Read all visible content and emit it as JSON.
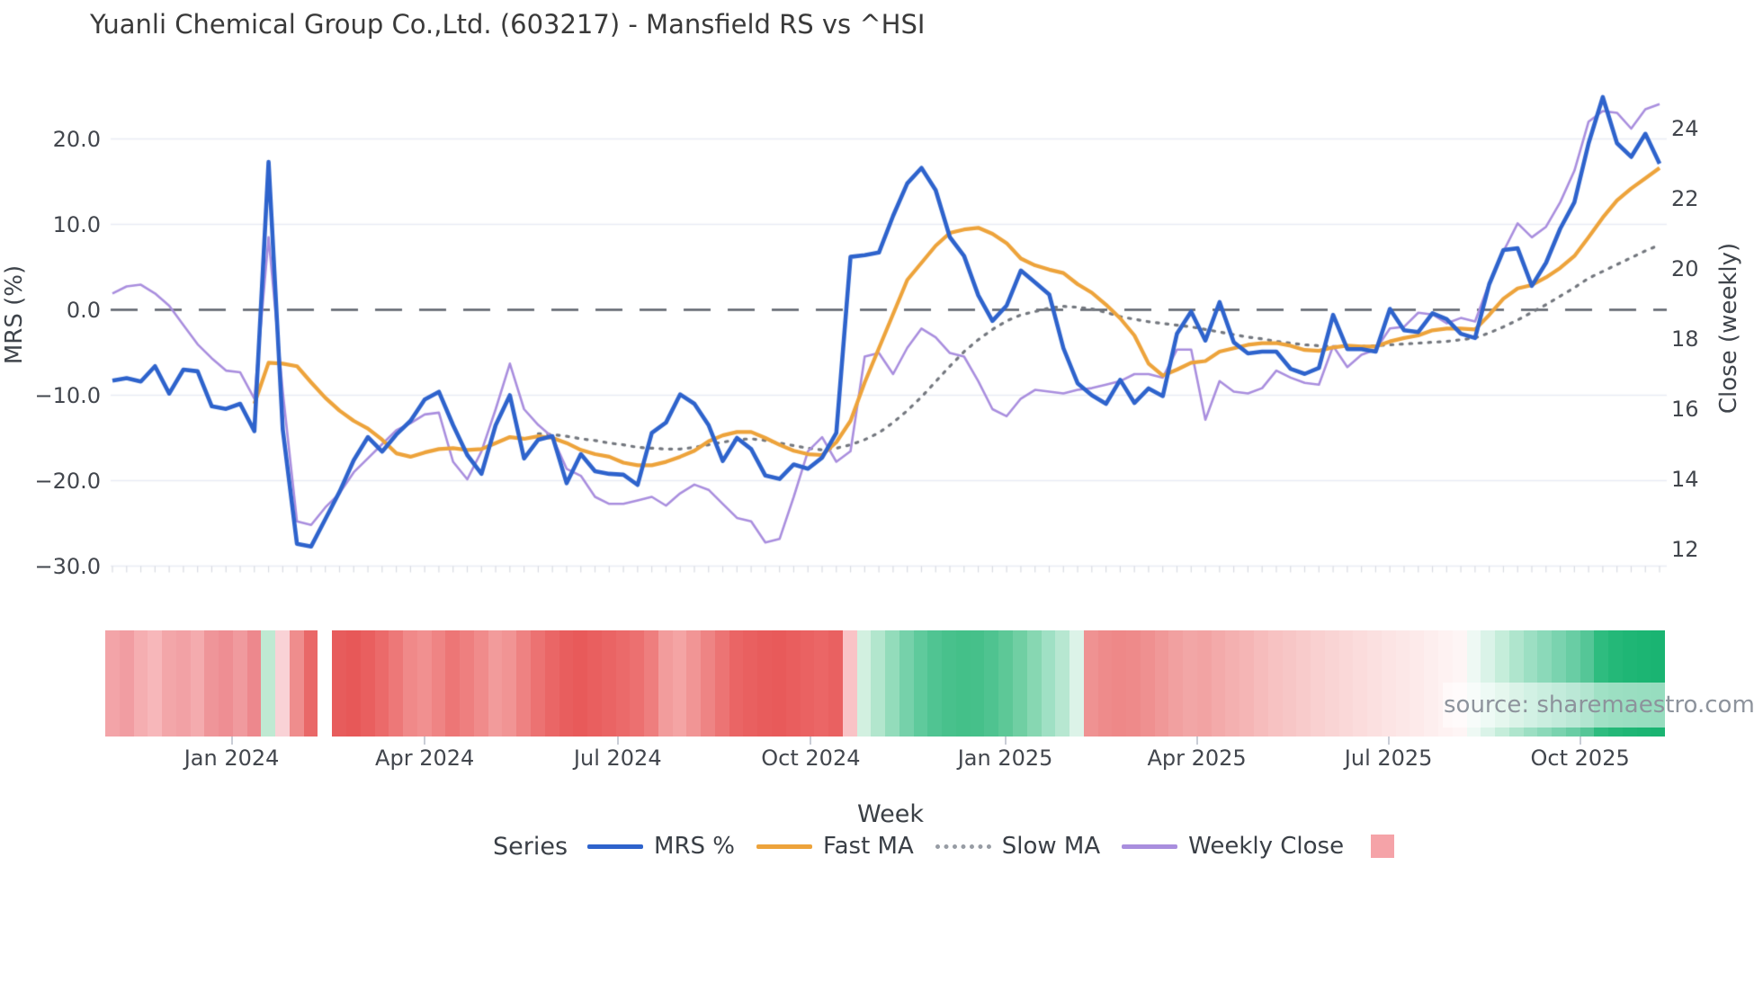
{
  "title": "Yuanli Chemical Group Co.,Ltd. (603217) - Mansfield RS vs ^HSI",
  "watermark": "source: sharemaestro.com",
  "axes": {
    "left": {
      "label": "MRS (%)",
      "ticks": [
        "20.0",
        "10.0",
        "0.0",
        "−10.0",
        "−20.0",
        "−30.0"
      ],
      "tick_values": [
        20,
        10,
        0,
        -10,
        -20,
        -30
      ]
    },
    "right": {
      "label": "Close (weekly)",
      "ticks": [
        "24",
        "22",
        "20",
        "18",
        "16",
        "14",
        "12"
      ],
      "tick_values": [
        24,
        22,
        20,
        18,
        16,
        14,
        12
      ]
    },
    "x": {
      "label": "Week",
      "ticks": [
        "Jan 2024",
        "Apr 2024",
        "Jul 2024",
        "Oct 2024",
        "Jan 2025",
        "Apr 2025",
        "Jul 2025",
        "Oct 2025"
      ],
      "tick_weeks": [
        8.4,
        22.0,
        35.6,
        49.2,
        62.9,
        76.4,
        89.9,
        103.4
      ]
    }
  },
  "legend": {
    "title": "Series",
    "items": [
      {
        "label": "MRS %",
        "color": "#2e63cc",
        "style": "solid"
      },
      {
        "label": "Fast MA",
        "color": "#eda33b",
        "style": "solid"
      },
      {
        "label": "Slow MA",
        "color": "#979ca4",
        "style": "dotted"
      },
      {
        "label": "Weekly Close",
        "color": "#a98ede",
        "style": "solid"
      }
    ],
    "extra_swatch_color": "#f5a3a8"
  },
  "colors": {
    "grid": "#e9ecf4",
    "zero_line": "#5c626b",
    "slow_ma_plot": "#73777e",
    "minor_tick": "#d8dbe2",
    "background": "#ffffff"
  },
  "chart_data": {
    "type": "line",
    "x_unit": "week",
    "n_weeks": 110,
    "left_axis_range": [
      -30,
      20
    ],
    "right_axis_range": [
      12,
      24
    ],
    "grid": "horizontal-only",
    "zero_reference_line": 0,
    "series": [
      {
        "name": "MRS %",
        "axis": "left",
        "color": "#2e63cc",
        "width": 4.6,
        "style": "solid",
        "start_week": 0,
        "values": [
          -8.3,
          -8.0,
          -8.4,
          -6.6,
          -9.8,
          -7.0,
          -7.2,
          -11.3,
          -11.6,
          -11.0,
          -14.2,
          17.3,
          -14.0,
          -27.4,
          -27.7,
          -24.5,
          -21.3,
          -17.6,
          -14.9,
          -16.6,
          -14.6,
          -13.0,
          -10.5,
          -9.6,
          -13.5,
          -17.0,
          -19.2,
          -13.5,
          -10.0,
          -17.4,
          -15.2,
          -14.8,
          -20.3,
          -16.9,
          -18.9,
          -19.2,
          -19.3,
          -20.5,
          -14.4,
          -13.2,
          -9.9,
          -11.0,
          -13.5,
          -17.7,
          -15.0,
          -16.3,
          -19.4,
          -19.8,
          -18.1,
          -18.6,
          -17.3,
          -14.4,
          6.2,
          6.4,
          6.7,
          11.0,
          14.8,
          16.6,
          14.0,
          8.5,
          6.3,
          1.7,
          -1.3,
          0.5,
          4.6,
          3.2,
          1.8,
          -4.5,
          -8.6,
          -10.0,
          -11.0,
          -8.2,
          -10.9,
          -9.2,
          -10.1,
          -2.8,
          -0.2,
          -3.6,
          0.9,
          -3.8,
          -5.1,
          -4.9,
          -4.9,
          -6.9,
          -7.5,
          -6.8,
          -0.6,
          -4.6,
          -4.6,
          -4.9,
          0.1,
          -2.4,
          -2.6,
          -0.4,
          -1.1,
          -2.8,
          -3.3,
          3.0,
          7.0,
          7.2,
          2.8,
          5.5,
          9.5,
          12.6,
          19.5,
          24.9,
          19.5,
          17.9,
          20.6,
          17.1
        ]
      },
      {
        "name": "Fast MA",
        "axis": "left",
        "color": "#eda33b",
        "width": 4.2,
        "style": "solid",
        "start_week": 10,
        "values": [
          -11.0,
          -6.2,
          -6.3,
          -6.6,
          -8.5,
          -10.3,
          -11.8,
          -13.0,
          -13.9,
          -15.2,
          -16.8,
          -17.2,
          -16.7,
          -16.3,
          -16.2,
          -16.4,
          -16.3,
          -15.6,
          -14.9,
          -15.1,
          -14.8,
          -15.0,
          -15.6,
          -16.4,
          -16.9,
          -17.2,
          -17.9,
          -18.2,
          -18.2,
          -17.8,
          -17.2,
          -16.5,
          -15.4,
          -14.7,
          -14.3,
          -14.3,
          -15.0,
          -15.8,
          -16.5,
          -16.9,
          -17.0,
          -15.5,
          -13.0,
          -8.5,
          -4.5,
          -0.5,
          3.5,
          5.5,
          7.5,
          9.0,
          9.4,
          9.6,
          8.9,
          7.8,
          6.0,
          5.2,
          4.7,
          4.3,
          3.0,
          2.0,
          0.6,
          -1.0,
          -3.0,
          -6.3,
          -7.7,
          -7.0,
          -6.2,
          -6.0,
          -4.9,
          -4.5,
          -4.1,
          -3.9,
          -3.9,
          -4.2,
          -4.7,
          -4.8,
          -4.4,
          -4.2,
          -4.3,
          -4.3,
          -3.7,
          -3.3,
          -3.0,
          -2.4,
          -2.2,
          -2.2,
          -2.3,
          -0.6,
          1.3,
          2.5,
          2.9,
          3.8,
          4.9,
          6.3,
          8.5,
          10.8,
          12.8,
          14.2,
          15.4,
          16.6
        ]
      },
      {
        "name": "Slow MA",
        "axis": "left",
        "color": "#73777e",
        "width": 3.2,
        "style": "dotted",
        "start_week": 30,
        "values": [
          -14.5,
          -14.6,
          -14.8,
          -15.1,
          -15.3,
          -15.6,
          -15.8,
          -16.1,
          -16.2,
          -16.3,
          -16.3,
          -16.1,
          -15.8,
          -15.5,
          -15.2,
          -15.1,
          -15.3,
          -15.6,
          -15.9,
          -16.2,
          -16.4,
          -16.2,
          -15.8,
          -15.2,
          -14.4,
          -13.2,
          -11.8,
          -10.2,
          -8.4,
          -6.6,
          -4.9,
          -3.5,
          -2.3,
          -1.3,
          -0.6,
          -0.2,
          0.2,
          0.4,
          0.3,
          0.1,
          -0.3,
          -0.8,
          -1.1,
          -1.4,
          -1.6,
          -1.8,
          -2.0,
          -2.3,
          -2.6,
          -2.9,
          -3.2,
          -3.4,
          -3.7,
          -3.9,
          -4.1,
          -4.2,
          -4.3,
          -4.3,
          -4.3,
          -4.2,
          -4.1,
          -4.0,
          -3.9,
          -3.8,
          -3.7,
          -3.5,
          -3.3,
          -2.7,
          -2.0,
          -1.2,
          -0.3,
          0.6,
          1.6,
          2.6,
          3.7,
          4.5,
          5.3,
          6.1,
          6.9,
          7.6
        ]
      },
      {
        "name": "Weekly Close",
        "axis": "right",
        "color": "#a98ede",
        "width": 2.6,
        "style": "solid",
        "start_week": 0,
        "values": [
          19.3,
          19.5,
          19.55,
          19.3,
          18.95,
          18.4,
          17.85,
          17.45,
          17.1,
          17.05,
          16.3,
          20.9,
          16.5,
          12.8,
          12.7,
          13.2,
          13.6,
          14.2,
          14.6,
          15.0,
          15.4,
          15.6,
          15.85,
          15.9,
          14.5,
          14.0,
          14.8,
          16.0,
          17.3,
          16.0,
          15.55,
          15.2,
          14.3,
          14.1,
          13.5,
          13.3,
          13.3,
          13.4,
          13.5,
          13.25,
          13.6,
          13.85,
          13.7,
          13.3,
          12.9,
          12.8,
          12.2,
          12.3,
          13.5,
          14.8,
          15.2,
          14.5,
          14.8,
          17.5,
          17.6,
          17.0,
          17.75,
          18.3,
          18.05,
          17.6,
          17.5,
          16.8,
          16.0,
          15.8,
          16.3,
          16.55,
          16.5,
          16.45,
          16.55,
          16.6,
          16.7,
          16.8,
          17.0,
          17.0,
          16.9,
          17.7,
          17.7,
          15.7,
          16.8,
          16.5,
          16.45,
          16.6,
          17.1,
          16.9,
          16.75,
          16.7,
          17.8,
          17.2,
          17.55,
          17.7,
          18.3,
          18.35,
          18.75,
          18.7,
          18.45,
          18.6,
          18.5,
          19.6,
          20.5,
          21.3,
          20.9,
          21.2,
          21.9,
          22.8,
          24.2,
          24.5,
          24.45,
          24.0,
          24.55,
          24.7
        ]
      }
    ],
    "heatmap": {
      "description": "weekly relative-strength color strip, week 15 is a no-data gap",
      "colors": [
        "#f3a4a8",
        "#f19da2",
        "#f5aeb1",
        "#f7b7ba",
        "#f3a6a9",
        "#f2a1a5",
        "#f4abae",
        "#ef9599",
        "#ee8e93",
        "#f09a9e",
        "#ed888d",
        "#bfe9d2",
        "#f9d2d6",
        "#ef8d8d",
        "#e96868",
        "#ffffff",
        "#e75c5c",
        "#e75858",
        "#e95f5f",
        "#eb6a6a",
        "#ed7878",
        "#f08989",
        "#f19090",
        "#ef8484",
        "#ed7676",
        "#ee7f7f",
        "#f08b8b",
        "#f29b9b",
        "#f19494",
        "#ee8282",
        "#ec7272",
        "#ea6666",
        "#e85e5e",
        "#e85a5a",
        "#e95f5f",
        "#ea6464",
        "#eb6a6a",
        "#ec7070",
        "#ee7e7e",
        "#f29c9c",
        "#f4a4a4",
        "#f19595",
        "#ee8484",
        "#ec7474",
        "#ea6565",
        "#e96060",
        "#e85c5c",
        "#e85a5a",
        "#e95e5e",
        "#ea6262",
        "#eb6666",
        "#e96161",
        "#f9c3c6",
        "#d2f0e0",
        "#b2e6cd",
        "#93dcbb",
        "#76d1aa",
        "#5fca9c",
        "#50c492",
        "#48c18c",
        "#44c089",
        "#46c08a",
        "#4fc390",
        "#5dc897",
        "#70cfa3",
        "#87d7b2",
        "#9fe0c4",
        "#b7e7d1",
        "#dcf3e8",
        "#ef9292",
        "#ee8b8b",
        "#ee8888",
        "#ee8a8a",
        "#ef9090",
        "#f09898",
        "#f1a0a0",
        "#f2a6a6",
        "#f2a3a3",
        "#f3aaaa",
        "#f4b0b0",
        "#f5b5b5",
        "#f6bcbc",
        "#f7c2c2",
        "#f7c6c6",
        "#f8cbcb",
        "#f9d0d0",
        "#f9d4d4",
        "#fad8d8",
        "#fbdcdc",
        "#fbe0e0",
        "#fce4e4",
        "#fce7e7",
        "#fdeaea",
        "#fdeeee",
        "#fef2f2",
        "#fef5f5",
        "#eef9f4",
        "#daf3e8",
        "#c5edda",
        "#afe5cd",
        "#9cdfc3",
        "#8bd9b9",
        "#7ad3af",
        "#69cda4",
        "#55c697",
        "#2ebc7f",
        "#24b878",
        "#1fb675",
        "#1cb573",
        "#1ab472"
      ]
    }
  }
}
